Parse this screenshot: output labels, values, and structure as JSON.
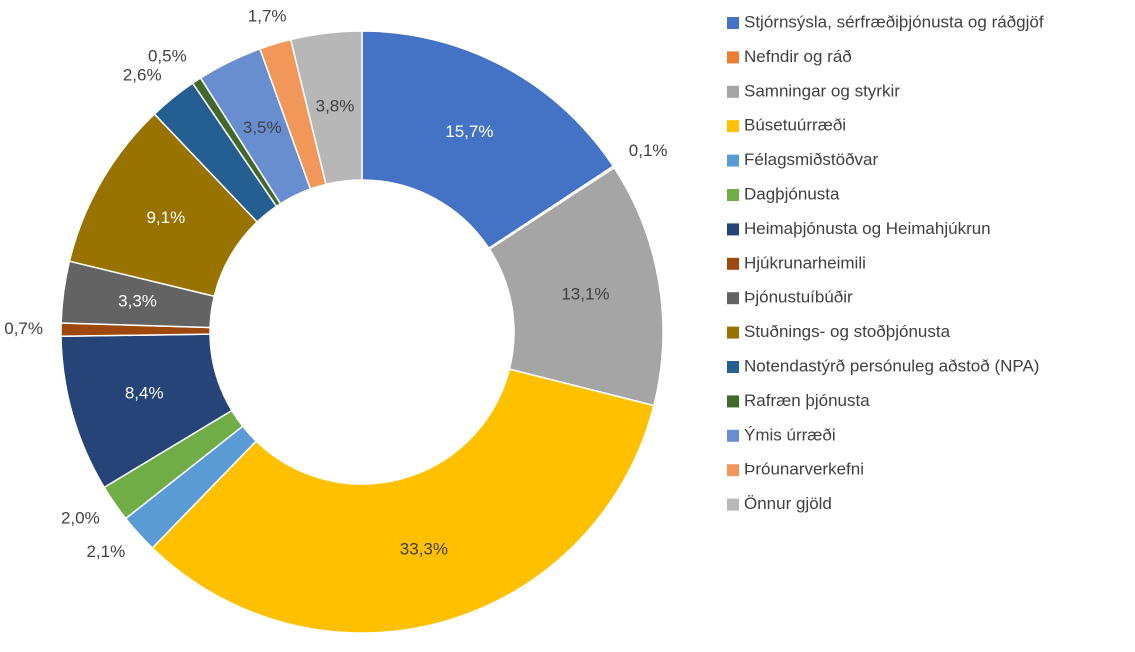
{
  "chart_data": {
    "type": "donut",
    "categories": [
      "Stjórnsýsla, sérfræðiþjónusta og ráðgjöf",
      "Nefndir og ráð",
      "Samningar og styrkir",
      "Búsetuúrræði",
      "Félagsmiðstöðvar",
      "Dagþjónusta",
      "Heimaþjónusta og Heimahjúkrun",
      "Hjúkrunarheimili",
      "Þjónustuíbúðir",
      "Stuðnings- og stoðþjónusta",
      "Notendastýrð persónuleg aðstoð (NPA)",
      "Rafræn þjónusta",
      "Ýmis úrræði",
      "Þróunarverkefni",
      "Önnur gjöld"
    ],
    "values": [
      15.7,
      0.1,
      13.1,
      33.3,
      2.1,
      2.0,
      8.4,
      0.7,
      3.3,
      9.1,
      2.6,
      0.5,
      3.5,
      1.7,
      3.8
    ],
    "value_labels": [
      "15,7%",
      "0,1%",
      "13,1%",
      "33,3%",
      "2,1%",
      "2,0%",
      "8,4%",
      "0,7%",
      "3,3%",
      "9,1%",
      "2,6%",
      "0,5%",
      "3,5%",
      "1,7%",
      "3,8%"
    ],
    "colors": [
      "#4472c4",
      "#ed7d31",
      "#a5a5a5",
      "#ffc000",
      "#5b9bd5",
      "#70ad47",
      "#264478",
      "#9e480e",
      "#636363",
      "#997300",
      "#255e91",
      "#43682b",
      "#698ed0",
      "#f1975a",
      "#b7b7b7"
    ],
    "legend": "right"
  }
}
